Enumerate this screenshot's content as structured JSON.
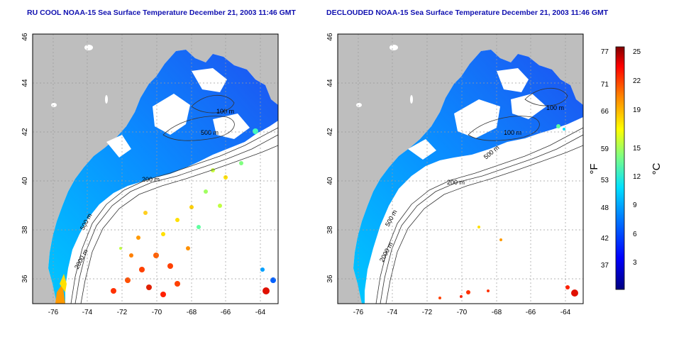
{
  "left_panel": {
    "title": "RU COOL NOAA-15 Sea Surface Temperature December 21, 2003 11:46 GMT",
    "contour_labels": [
      "100 m",
      "500 m",
      "200 m",
      "500 m",
      "2000 m"
    ]
  },
  "right_panel": {
    "title": "DECLOUDED NOAA-15 Sea Surface Temperature December 21, 2003 11:46 GMT",
    "contour_labels": [
      "100 m",
      "100 m",
      "500 m",
      "200 m",
      "500 m",
      "2000 m"
    ]
  },
  "axes": {
    "x_ticks": [
      "-76",
      "-74",
      "-72",
      "-70",
      "-68",
      "-66",
      "-64"
    ],
    "y_ticks": [
      "36",
      "38",
      "40",
      "42",
      "44",
      "46"
    ],
    "lon_range": [
      -77,
      -63
    ],
    "lat_range": [
      35,
      46
    ]
  },
  "colorbar": {
    "fahrenheit_label": "°F",
    "celsius_label": "°C",
    "fahrenheit_ticks": [
      "77",
      "71",
      "66",
      "59",
      "53",
      "48",
      "42",
      "37"
    ],
    "celsius_ticks": [
      "25",
      "22",
      "19",
      "15",
      "12",
      "9",
      "6",
      "3"
    ],
    "colors": [
      "#000080",
      "#0000ff",
      "#0080ff",
      "#00ffff",
      "#80ff80",
      "#ffff00",
      "#ff8000",
      "#ff0000",
      "#800000"
    ]
  },
  "colors": {
    "land": "#bebebe",
    "ocean_no_data": "#ffffff",
    "title": "#1010b0",
    "grid": "#9a9a9a"
  }
}
